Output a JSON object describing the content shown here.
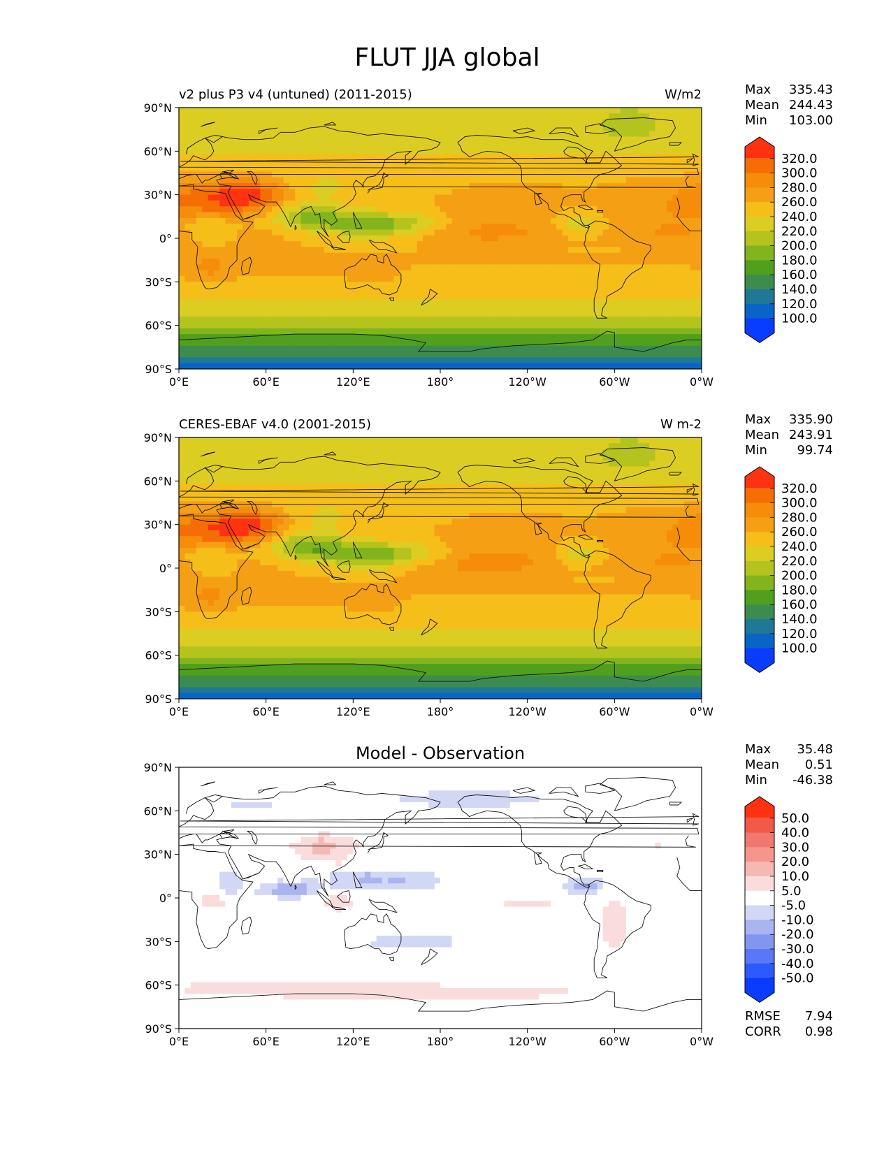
{
  "title": "FLUT JJA global",
  "colors": {
    "abs_levels": [
      "#0a3cff",
      "#0a64c8",
      "#1e7896",
      "#3c8c50",
      "#50a01e",
      "#82b41e",
      "#b4c31e",
      "#dccd23",
      "#f5be19",
      "#f5a014",
      "#f58c0a",
      "#f56e05",
      "#ff3212"
    ],
    "diff_levels": [
      "#0a3cff",
      "#2d5aff",
      "#5a78f5",
      "#8296f0",
      "#aab4f0",
      "#d2d7f5",
      "#ffffff",
      "#fadcdc",
      "#f5b9b4",
      "#f5968c",
      "#f0786e",
      "#f05a46",
      "#ff3212"
    ],
    "coast": "#111111"
  },
  "axes": {
    "lon_ticks": [
      "0°E",
      "60°E",
      "120°E",
      "180°",
      "120°W",
      "60°W",
      "0°W"
    ],
    "lat_ticks": [
      "90°N",
      "60°N",
      "30°N",
      "0°",
      "30°S",
      "60°S",
      "90°S"
    ]
  },
  "panels": [
    {
      "left_title": "v2 plus P3 v4 (untuned) (2011-2015)",
      "right_title": "W/m2",
      "center_title": "",
      "stats": [
        {
          "label": "Max",
          "value": "335.43"
        },
        {
          "label": "Mean",
          "value": "244.43"
        },
        {
          "label": "Min",
          "value": "103.00"
        }
      ],
      "colorbar": [
        "320.0",
        "300.0",
        "280.0",
        "260.0",
        "240.0",
        "220.0",
        "200.0",
        "180.0",
        "160.0",
        "140.0",
        "120.0",
        "100.0"
      ],
      "kind": "abs"
    },
    {
      "left_title": "CERES-EBAF v4.0 (2001-2015)",
      "right_title": "W m-2",
      "center_title": "",
      "stats": [
        {
          "label": "Max",
          "value": "335.90"
        },
        {
          "label": "Mean",
          "value": "243.91"
        },
        {
          "label": "Min",
          "value": "99.74"
        }
      ],
      "colorbar": [
        "320.0",
        "300.0",
        "280.0",
        "260.0",
        "240.0",
        "220.0",
        "200.0",
        "180.0",
        "160.0",
        "140.0",
        "120.0",
        "100.0"
      ],
      "kind": "abs"
    },
    {
      "left_title": "",
      "right_title": "",
      "center_title": "Model - Observation",
      "stats": [
        {
          "label": "Max",
          "value": "35.48"
        },
        {
          "label": "Mean",
          "value": "0.51"
        },
        {
          "label": "Min",
          "value": "-46.38"
        }
      ],
      "colorbar": [
        "50.0",
        "40.0",
        "30.0",
        "20.0",
        "10.0",
        "5.0",
        "-5.0",
        "-10.0",
        "-20.0",
        "-30.0",
        "-40.0",
        "-50.0"
      ],
      "kind": "diff",
      "extra_stats": [
        {
          "label": "RMSE",
          "value": "7.94"
        },
        {
          "label": "CORR",
          "value": "0.98"
        }
      ]
    }
  ],
  "chart_data": [
    {
      "type": "heatmap",
      "title": "v2 plus P3 v4 (untuned) (2011-2015)",
      "units": "W/m2",
      "x_range_deg": [
        0,
        360
      ],
      "y_range_deg": [
        -90,
        90
      ],
      "colorbar_levels": [
        100,
        120,
        140,
        160,
        180,
        200,
        220,
        240,
        260,
        280,
        300,
        320
      ],
      "stats": {
        "max": 335.43,
        "mean": 244.43,
        "min": 103.0
      }
    },
    {
      "type": "heatmap",
      "title": "CERES-EBAF v4.0 (2001-2015)",
      "units": "W m-2",
      "x_range_deg": [
        0,
        360
      ],
      "y_range_deg": [
        -90,
        90
      ],
      "colorbar_levels": [
        100,
        120,
        140,
        160,
        180,
        200,
        220,
        240,
        260,
        280,
        300,
        320
      ],
      "stats": {
        "max": 335.9,
        "mean": 243.91,
        "min": 99.74
      }
    },
    {
      "type": "heatmap",
      "title": "Model - Observation",
      "x_range_deg": [
        0,
        360
      ],
      "y_range_deg": [
        -90,
        90
      ],
      "colorbar_levels": [
        -50,
        -40,
        -30,
        -20,
        -10,
        -5,
        5,
        10,
        20,
        30,
        40,
        50
      ],
      "stats": {
        "max": 35.48,
        "mean": 0.51,
        "min": -46.38,
        "rmse": 7.94,
        "corr": 0.98
      }
    }
  ]
}
